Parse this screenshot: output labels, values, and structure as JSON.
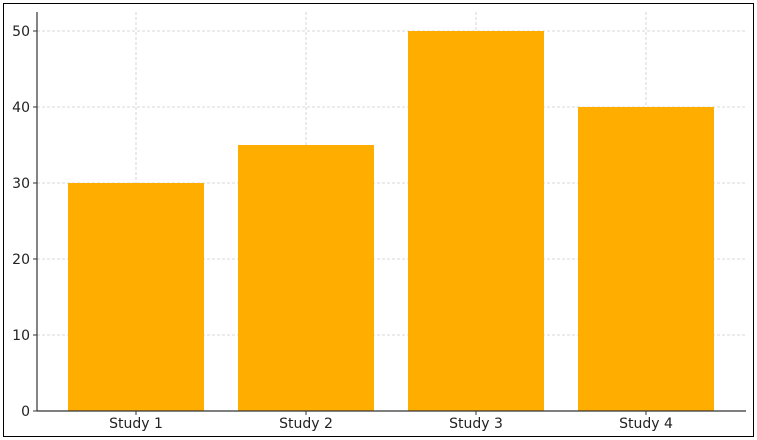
{
  "chart_data": {
    "type": "bar",
    "title": "",
    "xlabel": "",
    "ylabel": "",
    "categories": [
      "Study 1",
      "Study 2",
      "Study 3",
      "Study 4"
    ],
    "values": [
      30,
      35,
      50,
      40
    ],
    "ylim": [
      0,
      52.5
    ],
    "yticks": [
      0,
      10,
      20,
      30,
      40,
      50
    ],
    "grid": true,
    "legend": "none",
    "colors": {
      "bar": "#FFAE00",
      "grid": "#cccccc",
      "axis": "#333333",
      "frame": "#000000"
    }
  }
}
